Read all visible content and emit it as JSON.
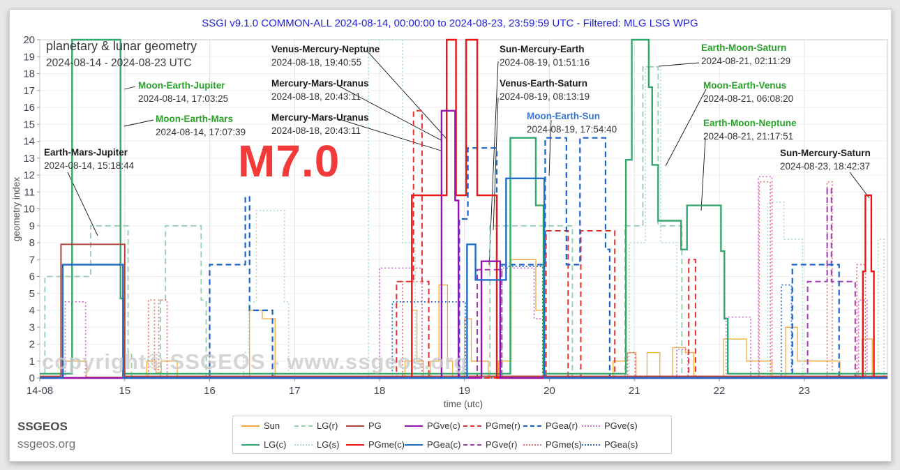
{
  "title": "SSGI v9.1.0 COMMON-ALL 2024-08-14, 00:00:00 to 2024-08-23, 23:59:59 UTC - Filtered: MLG LSG WPG",
  "heading": {
    "line1": "planetary & lunar geometry",
    "line2": "2024-08-14 - 2024-08-23 UTC"
  },
  "magnitude_label": "M7.0",
  "watermark": "copyright© SSGEOS - www.ssgeos.org",
  "footer": {
    "name": "SSGEOS",
    "site": "ssgeos.org"
  },
  "colors": {
    "title_blue": "#2323d8",
    "annotation_green": "#28a228",
    "annotation_blue": "#3a77d2",
    "magnitude_red": "#f23a3a"
  },
  "annotations": [
    {
      "label": "Moon-Earth-Jupiter",
      "date": "2024-08-14, 17:03:25",
      "color": "green",
      "line": [
        178,
        128,
        194,
        124
      ]
    },
    {
      "label": "Moon-Earth-Mars",
      "date": "2024-08-14, 17:07:39",
      "color": "green",
      "line": [
        178,
        181,
        220,
        172
      ]
    },
    {
      "label": "Earth-Mars-Jupiter",
      "date": "2024-08-14, 15:18:44",
      "color": "black",
      "line": [
        97,
        247,
        140,
        338
      ]
    },
    {
      "label": "Venus-Mercury-Neptune",
      "date": "2024-08-18, 19:40:55",
      "color": "black",
      "line": [
        527,
        74,
        641,
        200
      ]
    },
    {
      "label": "Mercury-Mars-Uranus",
      "date": "2024-08-18, 20:43:11",
      "color": "black",
      "line": [
        483,
        122,
        634,
        202
      ]
    },
    {
      "label": "Mercury-Mars-Uranus",
      "date": "2024-08-18, 20:43:11",
      "color": "black",
      "line": [
        483,
        170,
        632,
        216
      ]
    },
    {
      "label": "Sun-Mercury-Earth",
      "date": "2024-08-19, 01:51:16",
      "color": "black",
      "line": [
        714,
        88,
        701,
        380
      ]
    },
    {
      "label": "Venus-Earth-Saturn",
      "date": "2024-08-19, 08:13:19",
      "color": "black",
      "line": [
        714,
        140,
        707,
        330
      ]
    },
    {
      "label": "Moon-Earth-Sun",
      "date": "2024-08-19, 17:54:40",
      "color": "blue",
      "line": [
        790,
        172,
        787,
        252
      ]
    },
    {
      "label": "Earth-Moon-Saturn",
      "date": "2024-08-21, 02:11:29",
      "color": "green",
      "line": [
        1002,
        90,
        944,
        95
      ]
    },
    {
      "label": "Moon-Earth-Venus",
      "date": "2024-08-21, 06:08:20",
      "color": "green",
      "line": [
        1012,
        128,
        954,
        238
      ]
    },
    {
      "label": "Earth-Moon-Neptune",
      "date": "2024-08-21, 21:17:51",
      "color": "green",
      "line": [
        1011,
        198,
        1005,
        302
      ]
    },
    {
      "label": "Sun-Mercury-Saturn",
      "date": "2024-08-23, 18:42:37",
      "color": "black",
      "line": [
        1218,
        247,
        1246,
        284
      ]
    }
  ],
  "chart_data": {
    "type": "line",
    "interpolation": "step-after",
    "xlabel": "time (utc)",
    "ylabel": "geometry index",
    "xlim": [
      14,
      23.98
    ],
    "ylim": [
      0,
      20
    ],
    "grid": true,
    "x_ticks": [
      {
        "t": 14,
        "label": "14-08"
      },
      {
        "t": 15,
        "label": "15"
      },
      {
        "t": 16,
        "label": "16"
      },
      {
        "t": 17,
        "label": "17"
      },
      {
        "t": 18,
        "label": "18"
      },
      {
        "t": 19,
        "label": "19"
      },
      {
        "t": 20,
        "label": "20"
      },
      {
        "t": 21,
        "label": "21"
      },
      {
        "t": 22,
        "label": "22"
      },
      {
        "t": 23,
        "label": "23"
      }
    ],
    "y_tick_step": 1,
    "series": [
      {
        "id": "sun",
        "name": "Sun",
        "color": "#f2a93b",
        "style": "solid",
        "width": 1.3,
        "points": [
          [
            14,
            0.05
          ],
          [
            14.28,
            1
          ],
          [
            14.55,
            0.05
          ],
          [
            15.26,
            1
          ],
          [
            15.37,
            0.3
          ],
          [
            15.43,
            1
          ],
          [
            15.62,
            0.05
          ],
          [
            16.47,
            4
          ],
          [
            16.62,
            3.5
          ],
          [
            16.77,
            0.05
          ],
          [
            18.3,
            1
          ],
          [
            18.38,
            4
          ],
          [
            18.44,
            1
          ],
          [
            18.52,
            0.05
          ],
          [
            18.6,
            1
          ],
          [
            18.7,
            5.5
          ],
          [
            18.8,
            1
          ],
          [
            18.86,
            0.05
          ],
          [
            19.0,
            3.5
          ],
          [
            19.08,
            1
          ],
          [
            19.28,
            0.05
          ],
          [
            19.4,
            1
          ],
          [
            19.55,
            7
          ],
          [
            19.84,
            4
          ],
          [
            19.93,
            0.05
          ],
          [
            20.75,
            1
          ],
          [
            20.92,
            1.5
          ],
          [
            21.02,
            0.05
          ],
          [
            21.15,
            1.5
          ],
          [
            21.3,
            0.05
          ],
          [
            21.45,
            1.8
          ],
          [
            21.6,
            1.5
          ],
          [
            21.7,
            0.05
          ],
          [
            22.05,
            2.3
          ],
          [
            22.32,
            1
          ],
          [
            22.62,
            0.05
          ],
          [
            22.78,
            3
          ],
          [
            22.92,
            1
          ],
          [
            23.42,
            0.05
          ],
          [
            23.68,
            2.3
          ],
          [
            23.8,
            0.05
          ]
        ]
      },
      {
        "id": "lg_s",
        "name": "LG(s)",
        "color": "#a9dcc4",
        "style": "dotted",
        "width": 1.6,
        "points": [
          [
            14,
            0
          ],
          [
            16.4,
            1.5
          ],
          [
            16.46,
            4.5
          ],
          [
            16.55,
            9.9
          ],
          [
            16.88,
            4.5
          ],
          [
            16.93,
            0
          ],
          [
            17.87,
            20
          ],
          [
            18.27,
            8
          ],
          [
            18.42,
            0
          ],
          [
            20.94,
            8
          ],
          [
            21.13,
            18.4
          ],
          [
            21.31,
            8
          ],
          [
            21.5,
            0
          ],
          [
            22.57,
            10.4
          ],
          [
            22.76,
            8.2
          ],
          [
            22.98,
            0
          ],
          [
            23.87,
            8.2
          ],
          [
            23.94,
            0
          ]
        ]
      },
      {
        "id": "lg_r",
        "name": "LG(r)",
        "color": "#93cfad",
        "style": "dashed",
        "width": 1.8,
        "points": [
          [
            14,
            0
          ],
          [
            14.06,
            6
          ],
          [
            14.6,
            9
          ],
          [
            15.04,
            1.5
          ],
          [
            15.08,
            0
          ],
          [
            15.42,
            4.6
          ],
          [
            15.48,
            9
          ],
          [
            15.9,
            4.6
          ],
          [
            15.96,
            0
          ],
          [
            19.3,
            9
          ],
          [
            20.27,
            0
          ],
          [
            20.89,
            9
          ],
          [
            21.1,
            18.4
          ],
          [
            21.28,
            9
          ],
          [
            21.56,
            0
          ]
        ]
      },
      {
        "id": "pgme_s",
        "name": "PGme(s)",
        "color": "#e57070",
        "style": "dotted",
        "width": 1.7,
        "points": [
          [
            14,
            0
          ],
          [
            15.28,
            4.6
          ],
          [
            15.35,
            0.5
          ],
          [
            15.4,
            4.6
          ],
          [
            15.5,
            0
          ],
          [
            18.27,
            5.7
          ],
          [
            18.5,
            0
          ],
          [
            20.92,
            1.5
          ],
          [
            21.01,
            0
          ],
          [
            22.47,
            11.6
          ],
          [
            22.6,
            0
          ],
          [
            23.27,
            11.6
          ],
          [
            23.33,
            0
          ],
          [
            23.62,
            6.7
          ],
          [
            23.72,
            0
          ]
        ]
      },
      {
        "id": "pgve_s",
        "name": "PGve(s)",
        "color": "#cf72cf",
        "style": "dotted",
        "width": 1.7,
        "points": [
          [
            14,
            0
          ],
          [
            14.3,
            4.5
          ],
          [
            14.54,
            0
          ],
          [
            18.0,
            6.5
          ],
          [
            18.5,
            0
          ],
          [
            19.42,
            6.5
          ],
          [
            19.82,
            3.5
          ],
          [
            19.93,
            0
          ],
          [
            21.5,
            1.7
          ],
          [
            21.63,
            0
          ],
          [
            22.08,
            3.6
          ],
          [
            22.37,
            0
          ],
          [
            22.46,
            11.9
          ],
          [
            22.62,
            0
          ],
          [
            23.64,
            4.6
          ],
          [
            23.74,
            0
          ]
        ]
      },
      {
        "id": "pgea_s",
        "name": "PGea(s)",
        "color": "#2f6cc4",
        "style": "dotted",
        "width": 1.7,
        "points": [
          [
            14,
            0
          ],
          [
            18.15,
            4.5
          ],
          [
            19.01,
            0
          ],
          [
            19.44,
            6.6
          ],
          [
            19.92,
            0
          ],
          [
            22.73,
            5.5
          ],
          [
            22.85,
            0
          ]
        ]
      },
      {
        "id": "pgme_r",
        "name": "PGme(r)",
        "color": "#e03030",
        "style": "dashed",
        "width": 2,
        "points": [
          [
            14,
            0
          ],
          [
            18.2,
            5.7
          ],
          [
            18.4,
            15.8
          ],
          [
            18.5,
            5.7
          ],
          [
            18.58,
            0
          ],
          [
            19.96,
            8.7
          ],
          [
            20.22,
            0
          ],
          [
            20.37,
            8.7
          ],
          [
            20.77,
            0
          ],
          [
            21.64,
            7
          ],
          [
            21.72,
            0
          ]
        ]
      },
      {
        "id": "pgve_r",
        "name": "PGve(r)",
        "color": "#a43ab6",
        "style": "dashed",
        "width": 2,
        "points": [
          [
            14,
            0
          ],
          [
            19.15,
            6.4
          ],
          [
            19.44,
            0
          ],
          [
            23.04,
            5.7
          ],
          [
            23.27,
            11.2
          ],
          [
            23.32,
            5.7
          ],
          [
            23.6,
            0
          ]
        ]
      },
      {
        "id": "pgea_r",
        "name": "PGea(r)",
        "color": "#1a62cc",
        "style": "dashed",
        "width": 2.2,
        "points": [
          [
            14,
            0
          ],
          [
            16.0,
            6.7
          ],
          [
            16.42,
            10.7
          ],
          [
            16.47,
            4
          ],
          [
            16.74,
            0
          ],
          [
            18.94,
            9.4
          ],
          [
            19.04,
            13.6
          ],
          [
            19.38,
            6.7
          ],
          [
            19.95,
            14.2
          ],
          [
            20.2,
            6.7
          ],
          [
            20.36,
            14.2
          ],
          [
            20.66,
            7.6
          ],
          [
            20.71,
            0
          ],
          [
            22.86,
            6.7
          ],
          [
            23.41,
            0
          ]
        ]
      },
      {
        "id": "lg_c",
        "name": "LG(c)",
        "color": "#33a86c",
        "style": "solid",
        "width": 2.4,
        "points": [
          [
            14,
            0.25
          ],
          [
            14.38,
            20
          ],
          [
            14.95,
            4.7
          ],
          [
            14.99,
            0.25
          ],
          [
            19.54,
            14.2
          ],
          [
            19.84,
            10.2
          ],
          [
            19.93,
            0.25
          ],
          [
            20.9,
            12.9
          ],
          [
            20.97,
            20
          ],
          [
            21.17,
            17.2
          ],
          [
            21.21,
            12.6
          ],
          [
            21.28,
            9.3
          ],
          [
            21.55,
            7.6
          ],
          [
            21.62,
            10.2
          ],
          [
            22.02,
            7.5
          ],
          [
            22.06,
            3.5
          ],
          [
            22.1,
            0.25
          ]
        ]
      },
      {
        "id": "pg",
        "name": "PG",
        "color": "#b2443c",
        "style": "solid",
        "width": 2,
        "points": [
          [
            14,
            0.1
          ],
          [
            14.25,
            7.9
          ],
          [
            15.0,
            0.1
          ]
        ]
      },
      {
        "id": "pgme_c",
        "name": "PGme(c)",
        "color": "#ee1515",
        "style": "solid",
        "width": 2.4,
        "points": [
          [
            14,
            0
          ],
          [
            18.38,
            10.8
          ],
          [
            18.79,
            20
          ],
          [
            18.9,
            10.8
          ],
          [
            19.02,
            20
          ],
          [
            19.15,
            10.8
          ],
          [
            19.38,
            0
          ],
          [
            23.69,
            6.3
          ],
          [
            23.72,
            10.8
          ],
          [
            23.79,
            6.3
          ],
          [
            23.82,
            0
          ]
        ]
      },
      {
        "id": "pgve_c",
        "name": "PGve(c)",
        "color": "#9414b0",
        "style": "solid",
        "width": 2.4,
        "points": [
          [
            14,
            0
          ],
          [
            18.73,
            15.8
          ],
          [
            18.89,
            10.5
          ],
          [
            18.93,
            0
          ],
          [
            19.2,
            6.9
          ],
          [
            19.42,
            0
          ]
        ]
      },
      {
        "id": "pgea_c",
        "name": "PGea(c)",
        "color": "#1e6cc8",
        "style": "solid",
        "width": 2.4,
        "points": [
          [
            14,
            0
          ],
          [
            14.27,
            6.7
          ],
          [
            14.98,
            0
          ],
          [
            19.03,
            7.9
          ],
          [
            19.13,
            5.8
          ],
          [
            19.49,
            11.8
          ],
          [
            19.94,
            0
          ]
        ]
      }
    ],
    "legend_rows": [
      [
        "sun",
        "lg_r",
        "pg",
        "pgve_c",
        "pgme_r",
        "pgea_r",
        "pgve_s"
      ],
      [
        "lg_c",
        "lg_s",
        "pgme_c",
        "pgea_c",
        "pgve_r",
        "pgme_s",
        "pgea_s"
      ]
    ]
  }
}
